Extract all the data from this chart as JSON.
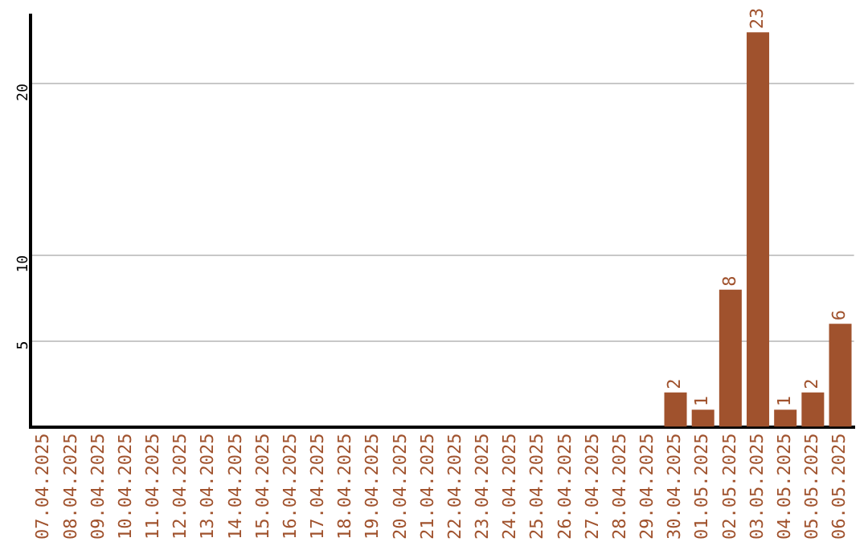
{
  "chart_data": {
    "type": "bar",
    "categories": [
      "07.04.2025",
      "08.04.2025",
      "09.04.2025",
      "10.04.2025",
      "11.04.2025",
      "12.04.2025",
      "13.04.2025",
      "14.04.2025",
      "15.04.2025",
      "16.04.2025",
      "17.04.2025",
      "18.04.2025",
      "19.04.2025",
      "20.04.2025",
      "21.04.2025",
      "22.04.2025",
      "23.04.2025",
      "24.04.2025",
      "25.04.2025",
      "26.04.2025",
      "27.04.2025",
      "28.04.2025",
      "29.04.2025",
      "30.04.2025",
      "01.05.2025",
      "02.05.2025",
      "03.05.2025",
      "04.05.2025",
      "05.05.2025",
      "06.05.2025"
    ],
    "values": [
      0,
      0,
      0,
      0,
      0,
      0,
      0,
      0,
      0,
      0,
      0,
      0,
      0,
      0,
      0,
      0,
      0,
      0,
      0,
      0,
      0,
      0,
      0,
      2,
      1,
      8,
      23,
      1,
      2,
      6
    ],
    "value_labels": [
      null,
      null,
      null,
      null,
      null,
      null,
      null,
      null,
      null,
      null,
      null,
      null,
      null,
      null,
      null,
      null,
      null,
      null,
      null,
      null,
      null,
      null,
      null,
      "2",
      "1",
      "8",
      "23",
      "1",
      "2",
      "6"
    ],
    "color": "#a0522d",
    "ylim": [
      0,
      24
    ],
    "yticks": [
      5,
      10,
      20
    ],
    "grid": "y",
    "legend": false
  }
}
